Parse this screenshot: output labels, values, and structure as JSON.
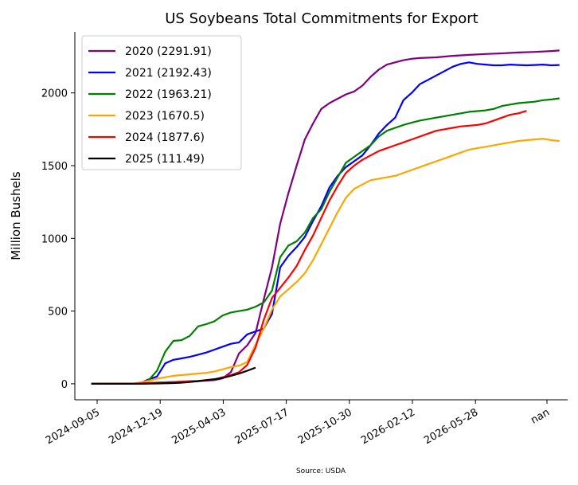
{
  "chart_data": {
    "type": "line",
    "title": "US Soybeans Total Commitments for Export",
    "ylabel": "Million Bushels",
    "xlabel": "",
    "source": "Source: USDA",
    "x_tick_labels": [
      "2024-09-05",
      "2024-12-19",
      "2025-04-03",
      "2025-07-17",
      "2025-10-30",
      "2026-02-12",
      "2026-05-28",
      "nan"
    ],
    "y_ticks": [
      0,
      500,
      1000,
      1500,
      2000
    ],
    "ylim": [
      -110,
      2420
    ],
    "x_range_weeks": [
      -2,
      58
    ],
    "x_unit": "week index (7-day steps from 2024-09-05)",
    "legend_position": "upper-left",
    "grid": false,
    "series": [
      {
        "name": "2020 (2291.91)",
        "color": "#800080",
        "x": [
          0,
          5,
          7,
          9,
          11,
          13,
          15,
          16,
          17,
          18,
          19,
          20,
          21,
          22,
          23,
          24,
          25,
          26,
          27,
          28,
          29,
          30,
          31,
          32,
          33,
          34,
          35,
          36,
          37,
          38,
          39,
          40,
          42,
          44,
          46,
          48,
          50,
          52,
          54,
          56,
          57
        ],
        "y": [
          0,
          0,
          5,
          10,
          14,
          18,
          25,
          38,
          80,
          210,
          265,
          350,
          580,
          800,
          1100,
          1310,
          1500,
          1680,
          1790,
          1890,
          1930,
          1960,
          1990,
          2010,
          2050,
          2110,
          2160,
          2195,
          2210,
          2225,
          2235,
          2240,
          2245,
          2255,
          2262,
          2268,
          2272,
          2278,
          2282,
          2288,
          2292
        ]
      },
      {
        "name": "2021 (2192.43)",
        "color": "#0000ff",
        "x": [
          0,
          5,
          6,
          7,
          8,
          9,
          10,
          11,
          12,
          13,
          14,
          15,
          16,
          17,
          18,
          19,
          20,
          21,
          22,
          23,
          24,
          25,
          26,
          27,
          28,
          29,
          30,
          31,
          32,
          33,
          34,
          35,
          36,
          37,
          38,
          39,
          40,
          41,
          42,
          43,
          44,
          45,
          46,
          47,
          48,
          49,
          50,
          51,
          52,
          53,
          54,
          55,
          56,
          57
        ],
        "y": [
          0,
          0,
          5,
          30,
          50,
          140,
          165,
          175,
          185,
          200,
          215,
          235,
          255,
          275,
          285,
          340,
          360,
          380,
          480,
          800,
          880,
          940,
          1010,
          1120,
          1220,
          1350,
          1430,
          1490,
          1530,
          1570,
          1640,
          1720,
          1780,
          1830,
          1950,
          2000,
          2060,
          2090,
          2120,
          2150,
          2180,
          2200,
          2210,
          2200,
          2195,
          2190,
          2190,
          2195,
          2192,
          2190,
          2192,
          2195,
          2190,
          2192
        ]
      },
      {
        "name": "2022 (1963.21)",
        "color": "#008000",
        "x": [
          0,
          5,
          6,
          7,
          8,
          9,
          10,
          11,
          12,
          13,
          14,
          15,
          16,
          17,
          18,
          19,
          20,
          21,
          22,
          23,
          24,
          25,
          26,
          27,
          28,
          29,
          30,
          31,
          32,
          33,
          34,
          35,
          36,
          37,
          38,
          39,
          40,
          41,
          42,
          43,
          44,
          45,
          46,
          47,
          48,
          49,
          50,
          51,
          52,
          53,
          54,
          55,
          56,
          57
        ],
        "y": [
          0,
          0,
          5,
          25,
          90,
          220,
          295,
          300,
          330,
          395,
          410,
          430,
          470,
          490,
          500,
          510,
          530,
          560,
          640,
          870,
          950,
          980,
          1040,
          1140,
          1200,
          1320,
          1420,
          1520,
          1560,
          1600,
          1640,
          1700,
          1740,
          1760,
          1780,
          1795,
          1810,
          1820,
          1830,
          1840,
          1850,
          1860,
          1870,
          1875,
          1880,
          1890,
          1910,
          1920,
          1930,
          1935,
          1940,
          1950,
          1955,
          1963
        ]
      },
      {
        "name": "2023 (1670.5)",
        "color": "#ffa500",
        "x": [
          0,
          5,
          6,
          7,
          8,
          9,
          10,
          11,
          12,
          13,
          14,
          15,
          16,
          17,
          18,
          19,
          20,
          21,
          22,
          23,
          24,
          25,
          26,
          27,
          28,
          29,
          30,
          31,
          32,
          33,
          34,
          35,
          36,
          37,
          38,
          39,
          40,
          41,
          42,
          43,
          44,
          45,
          46,
          47,
          48,
          49,
          50,
          51,
          52,
          53,
          54,
          55,
          56,
          57
        ],
        "y": [
          0,
          0,
          10,
          20,
          35,
          45,
          55,
          60,
          65,
          70,
          75,
          85,
          100,
          115,
          125,
          150,
          270,
          380,
          510,
          600,
          650,
          700,
          760,
          850,
          960,
          1070,
          1180,
          1280,
          1340,
          1370,
          1400,
          1410,
          1420,
          1430,
          1450,
          1470,
          1490,
          1510,
          1530,
          1550,
          1570,
          1590,
          1610,
          1620,
          1630,
          1640,
          1650,
          1660,
          1670,
          1675,
          1680,
          1685,
          1675,
          1670
        ]
      },
      {
        "name": "2024 (1877.6)",
        "color": "#ff0000",
        "x": [
          0,
          5,
          6,
          7,
          8,
          9,
          10,
          11,
          12,
          13,
          14,
          15,
          16,
          17,
          18,
          19,
          20,
          21,
          22,
          23,
          24,
          25,
          26,
          27,
          28,
          29,
          30,
          31,
          32,
          33,
          34,
          35,
          36,
          37,
          38,
          39,
          40,
          41,
          42,
          43,
          44,
          45,
          46,
          47,
          48,
          49,
          50,
          51,
          52,
          53
        ],
        "y": [
          0,
          0,
          2,
          5,
          8,
          10,
          12,
          15,
          18,
          20,
          25,
          30,
          45,
          60,
          80,
          130,
          250,
          440,
          590,
          660,
          730,
          810,
          920,
          1020,
          1140,
          1260,
          1360,
          1450,
          1500,
          1540,
          1570,
          1600,
          1620,
          1640,
          1660,
          1680,
          1700,
          1720,
          1740,
          1750,
          1760,
          1770,
          1775,
          1780,
          1790,
          1810,
          1830,
          1850,
          1860,
          1877
        ]
      },
      {
        "name": "2025 (111.49)",
        "color": "#000000",
        "x": [
          0,
          2,
          4,
          6,
          8,
          10,
          11,
          12,
          13,
          14,
          15,
          16,
          17,
          18,
          19,
          20
        ],
        "y": [
          0,
          0,
          0,
          0,
          2,
          5,
          8,
          12,
          18,
          25,
          32,
          40,
          55,
          70,
          90,
          111
        ]
      }
    ]
  }
}
